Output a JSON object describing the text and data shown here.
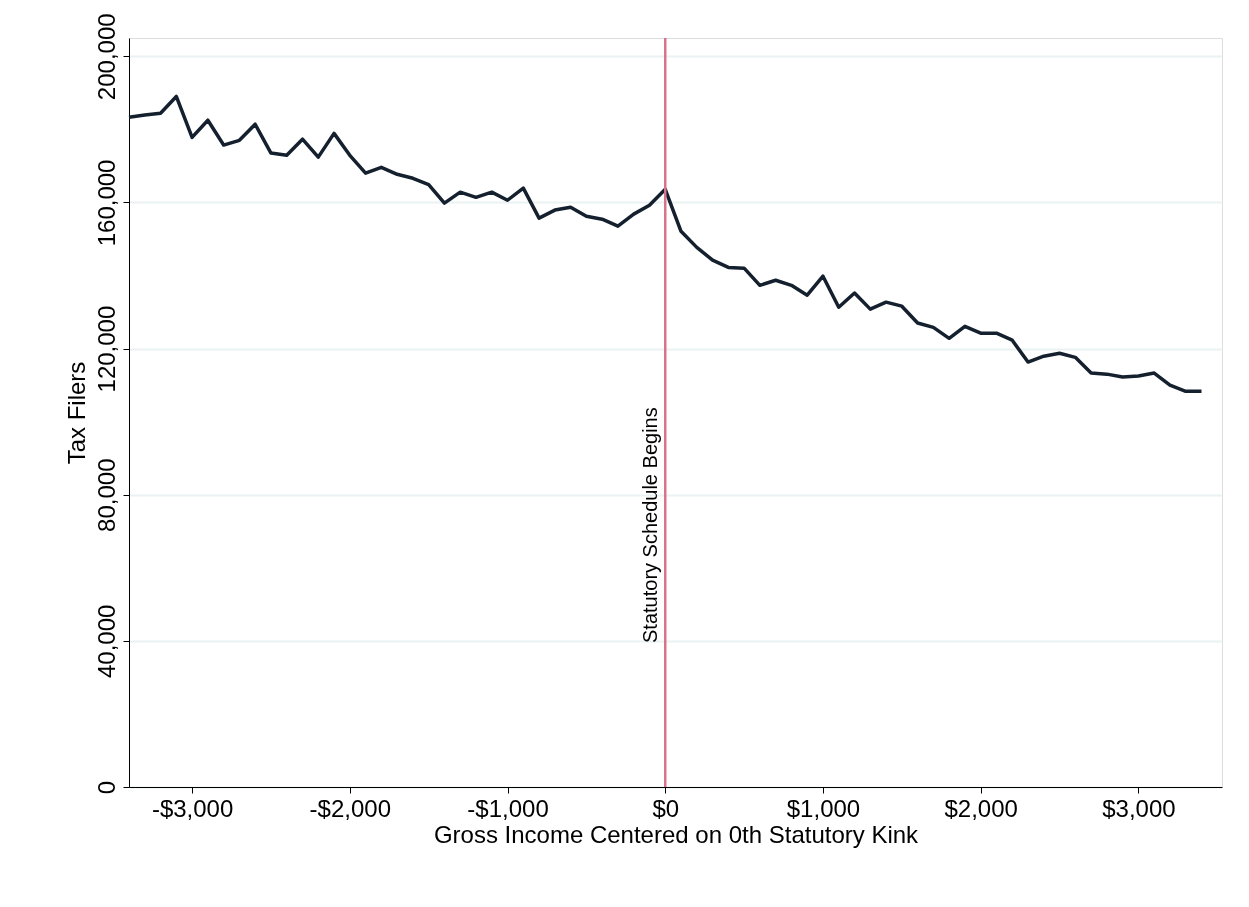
{
  "chart_data": {
    "type": "line",
    "xlabel": "Gross Income Centered on 0th Statutory Kink",
    "ylabel": "Tax Filers",
    "x": [
      -3400,
      -3300,
      -3200,
      -3100,
      -3000,
      -2900,
      -2800,
      -2700,
      -2600,
      -2500,
      -2400,
      -2300,
      -2200,
      -2100,
      -2000,
      -1900,
      -1800,
      -1700,
      -1600,
      -1500,
      -1400,
      -1300,
      -1200,
      -1100,
      -1000,
      -900,
      -800,
      -700,
      -600,
      -500,
      -400,
      -300,
      -200,
      -100,
      0,
      100,
      200,
      300,
      400,
      500,
      600,
      700,
      800,
      900,
      1000,
      1100,
      1200,
      1300,
      1400,
      1500,
      1600,
      1700,
      1800,
      1900,
      2000,
      2100,
      2200,
      2300,
      2400,
      2500,
      2600,
      2700,
      2800,
      2900,
      3000,
      3100,
      3200,
      3300,
      3400
    ],
    "series": [
      {
        "color": "#15202e",
        "values": [
          183300,
          183900,
          184400,
          189000,
          177800,
          182500,
          175700,
          177000,
          181400,
          173500,
          172900,
          177300,
          172400,
          178900,
          172900,
          168000,
          169600,
          167700,
          166600,
          164900,
          159800,
          162800,
          161400,
          162800,
          160600,
          163900,
          155700,
          157900,
          158700,
          156200,
          155400,
          153500,
          156800,
          159200,
          163600,
          152100,
          147700,
          144200,
          142200,
          142000,
          137300,
          138700,
          137300,
          134600,
          139800,
          131300,
          135200,
          130800,
          132700,
          131600,
          127000,
          125800,
          122800,
          126100,
          124200,
          124200,
          122300,
          116300,
          117900,
          118700,
          117600,
          113300,
          113000,
          112200,
          112500,
          113300,
          110000,
          108300,
          108300
        ]
      }
    ],
    "xlim": [
      -3400,
      3530
    ],
    "ylim": [
      0,
      205000
    ],
    "xticks": [
      {
        "value": -3000,
        "label": "-$3,000"
      },
      {
        "value": -2000,
        "label": "-$2,000"
      },
      {
        "value": -1000,
        "label": "-$1,000"
      },
      {
        "value": 0,
        "label": "$0"
      },
      {
        "value": 1000,
        "label": "$1,000"
      },
      {
        "value": 2000,
        "label": "$2,000"
      },
      {
        "value": 3000,
        "label": "$3,000"
      }
    ],
    "yticks": [
      0,
      {
        "value": 40000,
        "label": "40,000"
      },
      {
        "value": 80000,
        "label": "80,000"
      },
      {
        "value": 120000,
        "label": "120,000"
      },
      {
        "value": 160000,
        "label": "160,000"
      },
      {
        "value": 200000,
        "label": "200,000"
      }
    ],
    "grid": "y",
    "line_style": "solid",
    "marker": "none",
    "ref_lines": [
      {
        "axis": "x",
        "value": 0,
        "label": "Statutory Schedule Begins",
        "color": "#d9738a"
      }
    ]
  }
}
